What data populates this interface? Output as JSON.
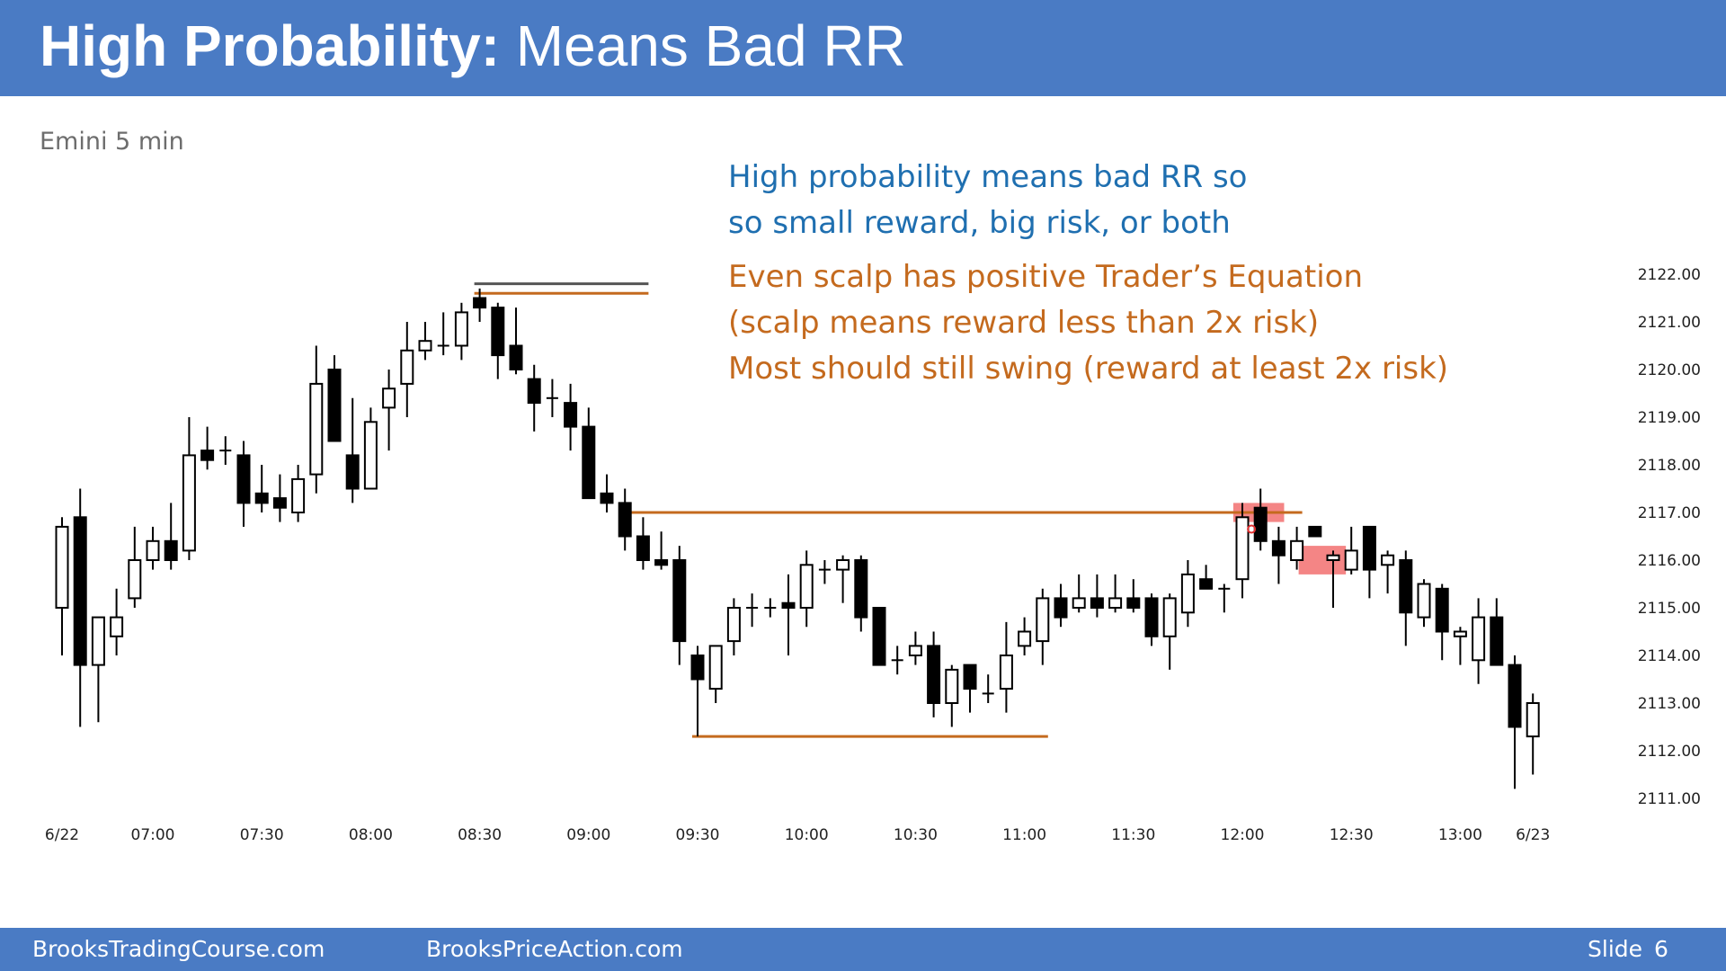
{
  "header": {
    "title_bold": "High Probability:",
    "title_rest": " Means Bad RR"
  },
  "subtitle": "Emini 5 min",
  "notes": {
    "blue": [
      "High probability means bad RR so",
      "so small reward, big risk, or both"
    ],
    "orange": [
      "Even scalp has positive Trader’s Equation",
      "(scalp means reward less than 2x risk)",
      "Most should still swing (reward at least 2x risk)"
    ]
  },
  "footer": {
    "left": "BrooksTradingCourse.com",
    "center": "BrooksPriceAction.com",
    "slide_label": "Slide",
    "slide_number": "6"
  },
  "colors": {
    "header_bg": "#4a7bc4",
    "orange_line": "#c46a1e",
    "highlight": "#ee4444",
    "candle": "#000000"
  },
  "chart_data": {
    "type": "candlestick",
    "ylim": [
      2110.5,
      2122.5
    ],
    "y_ticks": [
      "2122.00",
      "2121.00",
      "2120.00",
      "2119.00",
      "2118.00",
      "2117.00",
      "2116.00",
      "2115.00",
      "2114.00",
      "2113.00",
      "2112.00",
      "2111.00"
    ],
    "y_tick_values": [
      2122,
      2121,
      2120,
      2119,
      2118,
      2117,
      2116,
      2115,
      2114,
      2113,
      2112,
      2111
    ],
    "x_ticks": [
      {
        "label": "6/22",
        "bar": 0
      },
      {
        "label": "07:00",
        "bar": 5
      },
      {
        "label": "07:30",
        "bar": 11
      },
      {
        "label": "08:00",
        "bar": 17
      },
      {
        "label": "08:30",
        "bar": 23
      },
      {
        "label": "09:00",
        "bar": 29
      },
      {
        "label": "09:30",
        "bar": 35
      },
      {
        "label": "10:00",
        "bar": 41
      },
      {
        "label": "10:30",
        "bar": 47
      },
      {
        "label": "11:00",
        "bar": 53
      },
      {
        "label": "11:30",
        "bar": 59
      },
      {
        "label": "12:00",
        "bar": 65
      },
      {
        "label": "12:30",
        "bar": 71
      },
      {
        "label": "13:00",
        "bar": 77
      },
      {
        "label": "6/23",
        "bar": 81
      }
    ],
    "candles": [
      {
        "o": 2115.0,
        "h": 2116.9,
        "l": 2114.0,
        "c": 2116.7
      },
      {
        "o": 2116.9,
        "h": 2117.5,
        "l": 2112.5,
        "c": 2113.8
      },
      {
        "o": 2113.8,
        "h": 2114.8,
        "l": 2112.6,
        "c": 2114.8
      },
      {
        "o": 2114.4,
        "h": 2115.4,
        "l": 2114.0,
        "c": 2114.8
      },
      {
        "o": 2115.2,
        "h": 2116.7,
        "l": 2115.0,
        "c": 2116.0
      },
      {
        "o": 2116.0,
        "h": 2116.7,
        "l": 2115.8,
        "c": 2116.4
      },
      {
        "o": 2116.4,
        "h": 2117.2,
        "l": 2115.8,
        "c": 2116.0
      },
      {
        "o": 2116.2,
        "h": 2119.0,
        "l": 2116.0,
        "c": 2118.2
      },
      {
        "o": 2118.3,
        "h": 2118.8,
        "l": 2117.9,
        "c": 2118.1
      },
      {
        "o": 2118.3,
        "h": 2118.6,
        "l": 2118.0,
        "c": 2118.3
      },
      {
        "o": 2118.2,
        "h": 2118.5,
        "l": 2116.7,
        "c": 2117.2
      },
      {
        "o": 2117.4,
        "h": 2118.0,
        "l": 2117.0,
        "c": 2117.2
      },
      {
        "o": 2117.3,
        "h": 2117.8,
        "l": 2116.8,
        "c": 2117.1
      },
      {
        "o": 2117.0,
        "h": 2118.0,
        "l": 2116.8,
        "c": 2117.7
      },
      {
        "o": 2117.8,
        "h": 2120.5,
        "l": 2117.4,
        "c": 2119.7
      },
      {
        "o": 2120.0,
        "h": 2120.3,
        "l": 2118.6,
        "c": 2118.5
      },
      {
        "o": 2118.2,
        "h": 2119.4,
        "l": 2117.2,
        "c": 2117.5
      },
      {
        "o": 2117.5,
        "h": 2119.2,
        "l": 2117.5,
        "c": 2118.9
      },
      {
        "o": 2119.2,
        "h": 2120.0,
        "l": 2118.3,
        "c": 2119.6
      },
      {
        "o": 2119.7,
        "h": 2121.0,
        "l": 2119.0,
        "c": 2120.4
      },
      {
        "o": 2120.4,
        "h": 2121.0,
        "l": 2120.2,
        "c": 2120.6
      },
      {
        "o": 2120.5,
        "h": 2121.2,
        "l": 2120.3,
        "c": 2120.5
      },
      {
        "o": 2120.5,
        "h": 2121.4,
        "l": 2120.2,
        "c": 2121.2
      },
      {
        "o": 2121.5,
        "h": 2121.7,
        "l": 2121.0,
        "c": 2121.3
      },
      {
        "o": 2121.3,
        "h": 2121.4,
        "l": 2119.8,
        "c": 2120.3
      },
      {
        "o": 2120.5,
        "h": 2121.3,
        "l": 2119.9,
        "c": 2120.0
      },
      {
        "o": 2119.8,
        "h": 2120.1,
        "l": 2118.7,
        "c": 2119.3
      },
      {
        "o": 2119.4,
        "h": 2119.8,
        "l": 2119.0,
        "c": 2119.4
      },
      {
        "o": 2119.3,
        "h": 2119.7,
        "l": 2118.3,
        "c": 2118.8
      },
      {
        "o": 2118.8,
        "h": 2119.2,
        "l": 2117.3,
        "c": 2117.3
      },
      {
        "o": 2117.4,
        "h": 2117.8,
        "l": 2117.0,
        "c": 2117.2
      },
      {
        "o": 2117.2,
        "h": 2117.5,
        "l": 2116.2,
        "c": 2116.5
      },
      {
        "o": 2116.5,
        "h": 2116.9,
        "l": 2115.8,
        "c": 2116.0
      },
      {
        "o": 2116.0,
        "h": 2116.6,
        "l": 2115.8,
        "c": 2115.9
      },
      {
        "o": 2116.0,
        "h": 2116.3,
        "l": 2113.8,
        "c": 2114.3
      },
      {
        "o": 2114.0,
        "h": 2114.2,
        "l": 2112.3,
        "c": 2113.5
      },
      {
        "o": 2113.3,
        "h": 2114.2,
        "l": 2113.0,
        "c": 2114.2
      },
      {
        "o": 2114.3,
        "h": 2115.2,
        "l": 2114.0,
        "c": 2115.0
      },
      {
        "o": 2115.0,
        "h": 2115.3,
        "l": 2114.6,
        "c": 2115.0
      },
      {
        "o": 2115.0,
        "h": 2115.2,
        "l": 2114.8,
        "c": 2115.0
      },
      {
        "o": 2115.1,
        "h": 2115.7,
        "l": 2114.0,
        "c": 2115.0
      },
      {
        "o": 2115.0,
        "h": 2116.2,
        "l": 2114.6,
        "c": 2115.9
      },
      {
        "o": 2115.8,
        "h": 2116.0,
        "l": 2115.5,
        "c": 2115.8
      },
      {
        "o": 2115.8,
        "h": 2116.1,
        "l": 2115.1,
        "c": 2116.0
      },
      {
        "o": 2116.0,
        "h": 2116.1,
        "l": 2114.5,
        "c": 2114.8
      },
      {
        "o": 2115.0,
        "h": 2115.0,
        "l": 2113.8,
        "c": 2113.8
      },
      {
        "o": 2113.9,
        "h": 2114.2,
        "l": 2113.6,
        "c": 2113.9
      },
      {
        "o": 2114.0,
        "h": 2114.5,
        "l": 2113.8,
        "c": 2114.2
      },
      {
        "o": 2114.2,
        "h": 2114.5,
        "l": 2112.7,
        "c": 2113.0
      },
      {
        "o": 2113.0,
        "h": 2113.8,
        "l": 2112.5,
        "c": 2113.7
      },
      {
        "o": 2113.8,
        "h": 2113.8,
        "l": 2112.8,
        "c": 2113.3
      },
      {
        "o": 2113.2,
        "h": 2113.6,
        "l": 2113.0,
        "c": 2113.2
      },
      {
        "o": 2113.3,
        "h": 2114.7,
        "l": 2112.8,
        "c": 2114.0
      },
      {
        "o": 2114.2,
        "h": 2114.8,
        "l": 2114.0,
        "c": 2114.5
      },
      {
        "o": 2114.3,
        "h": 2115.4,
        "l": 2113.8,
        "c": 2115.2
      },
      {
        "o": 2115.2,
        "h": 2115.5,
        "l": 2114.6,
        "c": 2114.8
      },
      {
        "o": 2115.0,
        "h": 2115.7,
        "l": 2114.9,
        "c": 2115.2
      },
      {
        "o": 2115.2,
        "h": 2115.7,
        "l": 2114.8,
        "c": 2115.0
      },
      {
        "o": 2115.0,
        "h": 2115.7,
        "l": 2114.9,
        "c": 2115.2
      },
      {
        "o": 2115.2,
        "h": 2115.6,
        "l": 2114.9,
        "c": 2115.0
      },
      {
        "o": 2115.2,
        "h": 2115.3,
        "l": 2114.2,
        "c": 2114.4
      },
      {
        "o": 2114.4,
        "h": 2115.3,
        "l": 2113.7,
        "c": 2115.2
      },
      {
        "o": 2114.9,
        "h": 2116.0,
        "l": 2114.6,
        "c": 2115.7
      },
      {
        "o": 2115.6,
        "h": 2115.9,
        "l": 2115.4,
        "c": 2115.4
      },
      {
        "o": 2115.4,
        "h": 2115.5,
        "l": 2114.9,
        "c": 2115.4
      },
      {
        "o": 2115.6,
        "h": 2117.2,
        "l": 2115.2,
        "c": 2116.9
      },
      {
        "o": 2117.1,
        "h": 2117.5,
        "l": 2116.2,
        "c": 2116.4
      },
      {
        "o": 2116.4,
        "h": 2116.7,
        "l": 2115.5,
        "c": 2116.1
      },
      {
        "o": 2116.0,
        "h": 2116.7,
        "l": 2115.8,
        "c": 2116.4
      },
      {
        "o": 2116.7,
        "h": 2116.7,
        "l": 2116.5,
        "c": 2116.5
      },
      {
        "o": 2116.0,
        "h": 2116.2,
        "l": 2115.0,
        "c": 2116.1
      },
      {
        "o": 2115.8,
        "h": 2116.7,
        "l": 2115.7,
        "c": 2116.2
      },
      {
        "o": 2116.7,
        "h": 2116.7,
        "l": 2115.2,
        "c": 2115.8
      },
      {
        "o": 2115.9,
        "h": 2116.2,
        "l": 2115.3,
        "c": 2116.1
      },
      {
        "o": 2116.0,
        "h": 2116.2,
        "l": 2114.2,
        "c": 2114.9
      },
      {
        "o": 2114.8,
        "h": 2115.6,
        "l": 2114.6,
        "c": 2115.5
      },
      {
        "o": 2115.4,
        "h": 2115.5,
        "l": 2113.9,
        "c": 2114.5
      },
      {
        "o": 2114.4,
        "h": 2114.6,
        "l": 2113.8,
        "c": 2114.5
      },
      {
        "o": 2113.9,
        "h": 2115.2,
        "l": 2113.4,
        "c": 2114.8
      },
      {
        "o": 2114.8,
        "h": 2115.2,
        "l": 2113.8,
        "c": 2113.8
      },
      {
        "o": 2113.8,
        "h": 2114.0,
        "l": 2111.2,
        "c": 2112.5
      },
      {
        "o": 2112.3,
        "h": 2113.2,
        "l": 2111.5,
        "c": 2113.0
      }
    ],
    "lines": [
      {
        "price": 2121.8,
        "from_bar": 23,
        "to_bar": 32,
        "color": "#555555"
      },
      {
        "price": 2121.6,
        "from_bar": 23,
        "to_bar": 32,
        "color": "#c46a1e"
      },
      {
        "price": 2117.0,
        "from_bar": 31,
        "to_bar": 68,
        "color": "#c46a1e"
      },
      {
        "price": 2112.3,
        "from_bar": 35,
        "to_bar": 54,
        "color": "#c46a1e"
      }
    ],
    "highlights": [
      {
        "from_bar": 64.5,
        "to_bar": 67.3,
        "top": 2117.2,
        "bottom": 2116.8
      },
      {
        "from_bar": 68.1,
        "to_bar": 70.7,
        "top": 2116.3,
        "bottom": 2115.7
      }
    ],
    "marker": {
      "bar": 65.5,
      "price": 2116.65
    }
  }
}
